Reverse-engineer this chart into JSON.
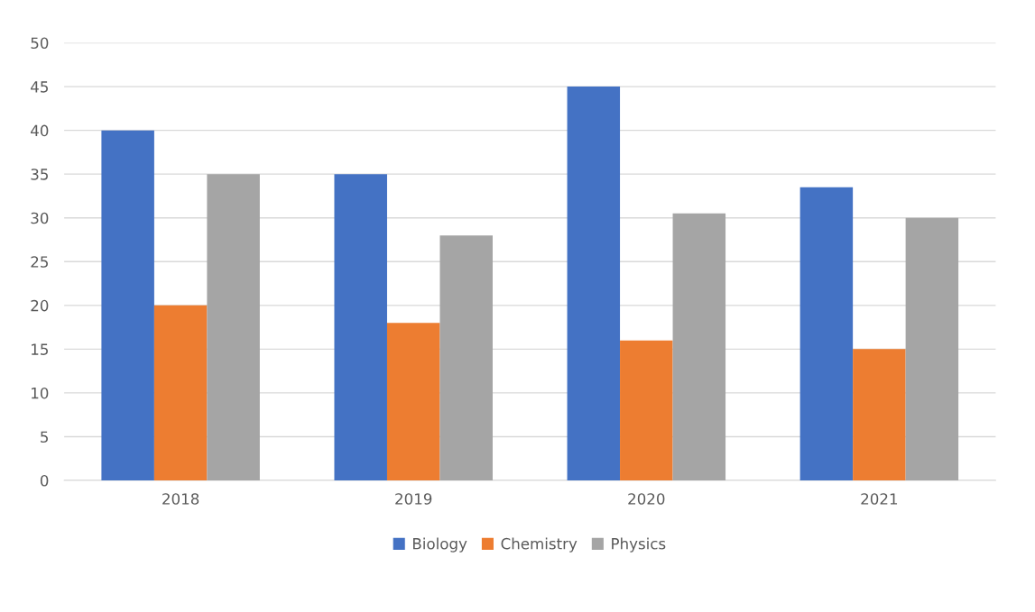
{
  "chart_data": {
    "type": "bar",
    "categories": [
      "2018",
      "2019",
      "2020",
      "2021"
    ],
    "series": [
      {
        "name": "Biology",
        "color": "#4472c4",
        "values": [
          40,
          35,
          45,
          33.5
        ]
      },
      {
        "name": "Chemistry",
        "color": "#ed7d31",
        "values": [
          20,
          18,
          16,
          15
        ]
      },
      {
        "name": "Physics",
        "color": "#a5a5a5",
        "values": [
          35,
          28,
          30.5,
          30
        ]
      }
    ],
    "ylim": [
      0,
      50
    ],
    "yticks": [
      0,
      5,
      10,
      15,
      20,
      25,
      30,
      35,
      40,
      45,
      50
    ],
    "grid": "y",
    "legend": "bottom"
  }
}
